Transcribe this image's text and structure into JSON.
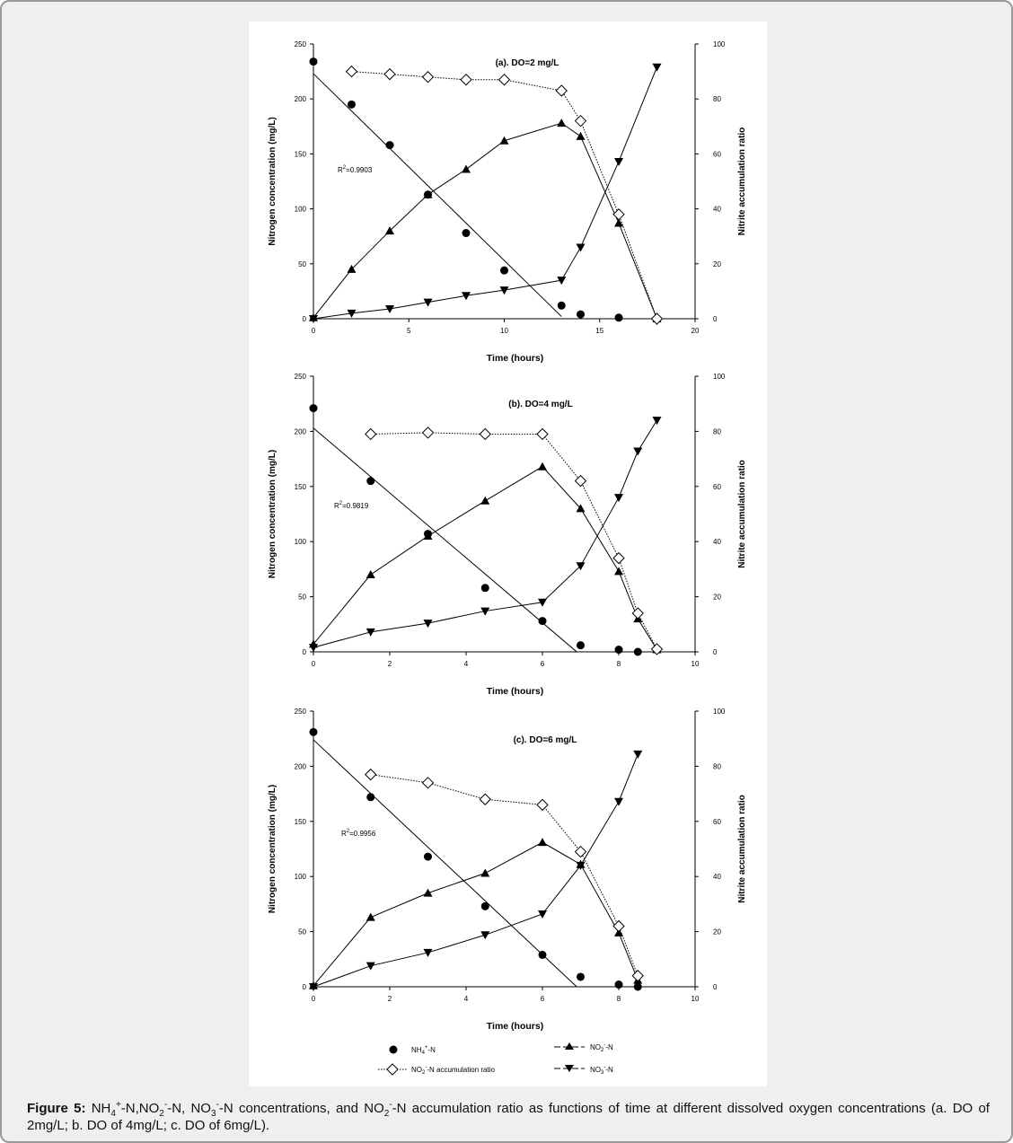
{
  "caption": {
    "label": "Figure 5:",
    "runs": [
      {
        "t": " NH"
      },
      {
        "t": "4",
        "k": "sub"
      },
      {
        "t": "+",
        "k": "sup"
      },
      {
        "t": "-N,NO"
      },
      {
        "t": "2",
        "k": "sub"
      },
      {
        "t": "-",
        "k": "sup"
      },
      {
        "t": "-N, NO"
      },
      {
        "t": "3",
        "k": "sub"
      },
      {
        "t": "-",
        "k": "sup"
      },
      {
        "t": "-N concentrations, and NO"
      },
      {
        "t": "2",
        "k": "sub"
      },
      {
        "t": "-",
        "k": "sup"
      },
      {
        "t": "-N accumulation ratio as functions of time at different dissolved oxygen concentrations (a. DO of 2mg/L; b. DO of 4mg/L; c. DO of 6mg/L)."
      }
    ]
  },
  "legend": {
    "nh4": "NH4+-N",
    "no2": "NO2--N",
    "ratio": "NO2--N accumulation ratio",
    "no3": "NO3--N"
  },
  "colors": {
    "ink": "#000000",
    "panel": "#ffffff",
    "frame_bg": "#efefef",
    "frame_border": "#9a9a9a"
  },
  "chart_data": [
    {
      "type": "scatter",
      "title": "(a). DO=2 mg/L",
      "xlabel": "Time (hours)",
      "ylabel": "Nitrogen concentration (mg/L)",
      "ylabel_right": "Nitrite accumulation ratio",
      "xlim": [
        0,
        20
      ],
      "xticks": [
        0,
        5,
        10,
        15,
        20
      ],
      "ylim": [
        0,
        250
      ],
      "yticks": [
        0,
        50,
        100,
        150,
        200,
        250
      ],
      "y2lim": [
        0,
        100
      ],
      "y2ticks": [
        0,
        20,
        40,
        60,
        80,
        100
      ],
      "r2_label": "R2=0.9903",
      "series": {
        "nh4": {
          "x": [
            0,
            2,
            4,
            6,
            8,
            10,
            13,
            14,
            16
          ],
          "y": [
            234,
            195,
            158,
            113,
            78,
            44,
            12,
            4,
            1
          ]
        },
        "nh4_fit": {
          "x": [
            0,
            13
          ],
          "y": [
            223,
            2
          ]
        },
        "no2": {
          "x": [
            0,
            2,
            4,
            6,
            8,
            10,
            13,
            14,
            16,
            18
          ],
          "y": [
            1,
            45,
            80,
            113,
            136,
            162,
            178,
            166,
            87,
            0
          ]
        },
        "no3": {
          "x": [
            0,
            2,
            4,
            6,
            8,
            10,
            13,
            14,
            16,
            18
          ],
          "y": [
            0,
            5,
            9,
            15,
            21,
            26,
            35,
            65,
            143,
            229
          ]
        },
        "ratio": {
          "x": [
            2,
            4,
            6,
            8,
            10,
            13,
            14,
            16,
            18
          ],
          "y": [
            90,
            89,
            88,
            87,
            87,
            83,
            72,
            38,
            0
          ]
        }
      }
    },
    {
      "type": "scatter",
      "title": "(b). DO=4 mg/L",
      "xlabel": "Time (hours)",
      "ylabel": "Nitrogen concentration (mg/L)",
      "ylabel_right": "Nitrite accumulation ratio",
      "xlim": [
        0,
        10
      ],
      "xticks": [
        0,
        2,
        4,
        6,
        8,
        10
      ],
      "ylim": [
        0,
        250
      ],
      "yticks": [
        0,
        50,
        100,
        150,
        200,
        250
      ],
      "y2lim": [
        0,
        100
      ],
      "y2ticks": [
        0,
        20,
        40,
        60,
        80,
        100
      ],
      "r2_label": "R2=0.9819",
      "series": {
        "nh4": {
          "x": [
            0,
            1.5,
            3,
            4.5,
            6,
            7,
            8,
            8.5
          ],
          "y": [
            221,
            155,
            107,
            58,
            28,
            6,
            2,
            0
          ]
        },
        "nh4_fit": {
          "x": [
            0,
            6.9
          ],
          "y": [
            203,
            0
          ]
        },
        "no2": {
          "x": [
            0,
            1.5,
            3,
            4.5,
            6,
            7,
            8,
            8.5,
            9
          ],
          "y": [
            7,
            70,
            105,
            137,
            168,
            130,
            73,
            30,
            2
          ]
        },
        "no3": {
          "x": [
            0,
            1.5,
            3,
            4.5,
            6,
            7,
            8,
            8.5,
            9
          ],
          "y": [
            4,
            18,
            26,
            37,
            45,
            78,
            140,
            182,
            210
          ]
        },
        "ratio": {
          "x": [
            1.5,
            3,
            4.5,
            6,
            7,
            8,
            8.5,
            9
          ],
          "y": [
            79,
            79.5,
            79,
            79,
            62,
            34,
            14,
            1
          ]
        }
      }
    },
    {
      "type": "scatter",
      "title": "(c). DO=6 mg/L",
      "xlabel": "Time (hours)",
      "ylabel": "Nitrogen concentration (mg/L)",
      "ylabel_right": "Nitrite accumulation ratio",
      "xlim": [
        0,
        10
      ],
      "xticks": [
        0,
        2,
        4,
        6,
        8,
        10
      ],
      "ylim": [
        0,
        250
      ],
      "yticks": [
        0,
        50,
        100,
        150,
        200,
        250
      ],
      "y2lim": [
        0,
        100
      ],
      "y2ticks": [
        0,
        20,
        40,
        60,
        80,
        100
      ],
      "r2_label": "R2=0.9956",
      "series": {
        "nh4": {
          "x": [
            0,
            1.5,
            3,
            4.5,
            6,
            7,
            8,
            8.5
          ],
          "y": [
            231,
            172,
            118,
            73,
            29,
            9,
            2,
            0
          ]
        },
        "nh4_fit": {
          "x": [
            0,
            6.9
          ],
          "y": [
            224,
            0
          ]
        },
        "no2": {
          "x": [
            0,
            1.5,
            3,
            4.5,
            6,
            7,
            8,
            8.5
          ],
          "y": [
            1,
            63,
            85,
            103,
            131,
            111,
            49,
            6
          ]
        },
        "no3": {
          "x": [
            0,
            1.5,
            3,
            4.5,
            6,
            7,
            8,
            8.5
          ],
          "y": [
            0,
            19,
            31,
            47,
            66,
            110,
            168,
            211
          ]
        },
        "ratio": {
          "x": [
            1.5,
            3,
            4.5,
            6,
            7,
            8,
            8.5
          ],
          "y": [
            77,
            74,
            68,
            66,
            49,
            22,
            4
          ]
        }
      }
    }
  ]
}
